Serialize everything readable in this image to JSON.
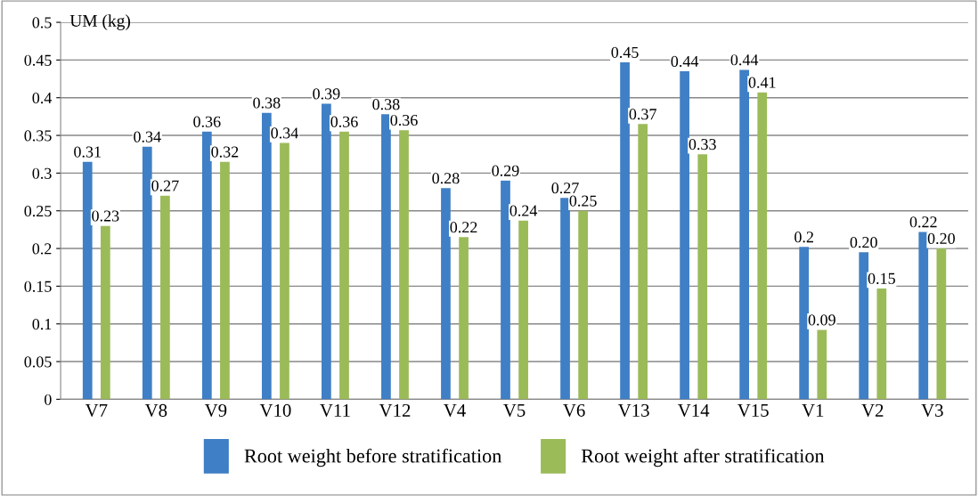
{
  "chart_data": {
    "type": "bar",
    "ylabel": "UM (kg)",
    "categories": [
      "V7",
      "V8",
      "V9",
      "V10",
      "V11",
      "V12",
      "V4",
      "V5",
      "V6",
      "V13",
      "V14",
      "V15",
      "V1",
      "V2",
      "V3"
    ],
    "series": [
      {
        "name": "Root weight before stratification",
        "color": "#3f7fc6",
        "values": [
          0.315,
          0.335,
          0.355,
          0.38,
          0.392,
          0.378,
          0.28,
          0.29,
          0.267,
          0.447,
          0.435,
          0.437,
          0.202,
          0.195,
          0.222
        ],
        "value_labels": [
          "0.31",
          "0.34",
          "0.36",
          "0.38",
          "0.39",
          "0.38",
          "0.28",
          "0.29",
          "0.27",
          "0.45",
          "0.44",
          "0.44",
          "0.2",
          "0.20",
          "0.22"
        ]
      },
      {
        "name": "Root weight after stratification",
        "color": "#9bbb59",
        "values": [
          0.23,
          0.27,
          0.315,
          0.34,
          0.355,
          0.357,
          0.215,
          0.237,
          0.25,
          0.365,
          0.325,
          0.407,
          0.092,
          0.147,
          0.2
        ],
        "value_labels": [
          "0.23",
          "0.27",
          "0.32",
          "0.34",
          "0.36",
          "0.36",
          "0.22",
          "0.24",
          "0.25",
          "0.37",
          "0.33",
          "0.41",
          "0.09",
          "0.15",
          "0.20"
        ]
      }
    ],
    "ylim": [
      0,
      0.5
    ],
    "yticks": [
      0,
      0.05,
      0.1,
      0.15,
      0.2,
      0.25,
      0.3,
      0.35,
      0.4,
      0.45,
      0.5
    ],
    "grid": "y",
    "legend": "bottom"
  }
}
